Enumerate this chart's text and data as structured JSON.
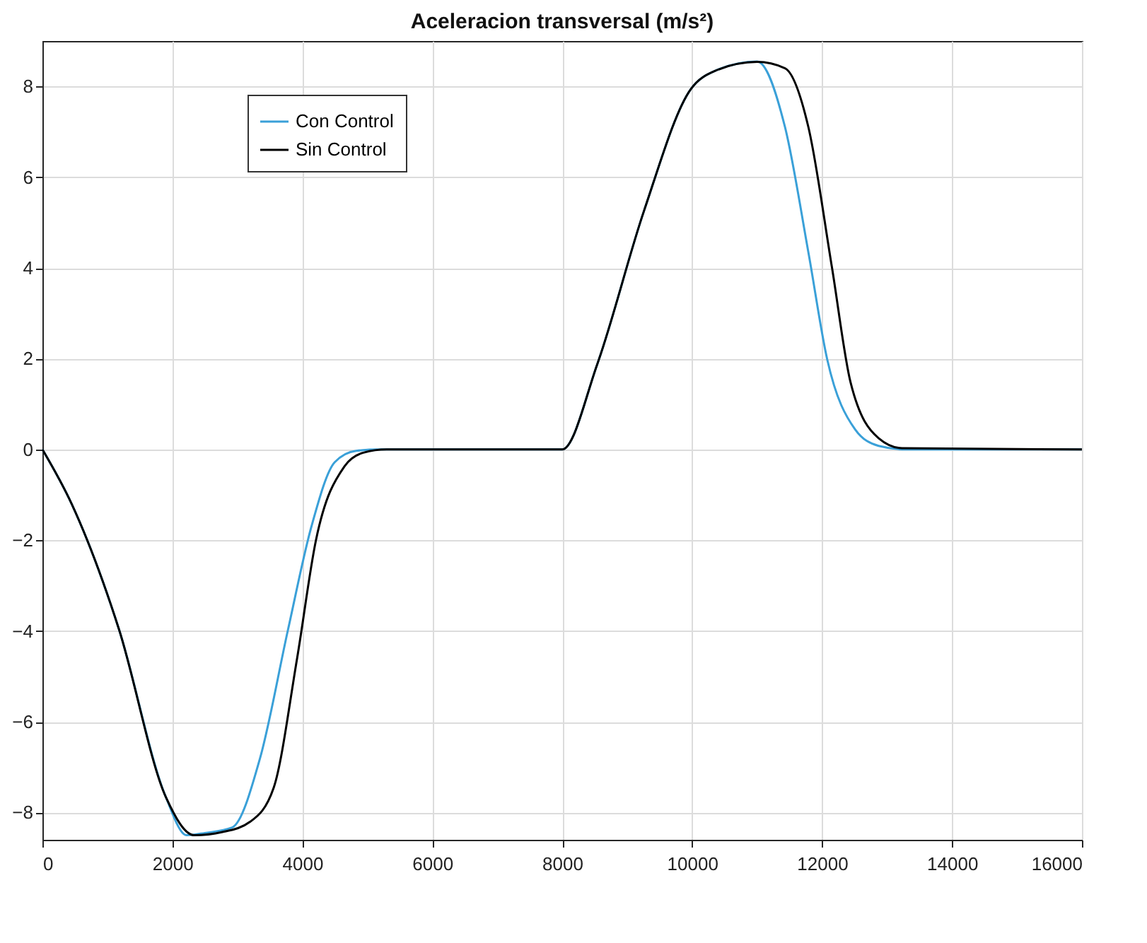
{
  "chart_data": {
    "type": "line",
    "title": "Aceleracion transversal (m/s²)",
    "xlim": [
      0,
      16000
    ],
    "xticks": [
      0,
      2000,
      4000,
      6000,
      8000,
      10000,
      12000,
      14000,
      16000
    ],
    "ylim": [
      -8.6,
      9
    ],
    "yticks": [
      -8,
      -6,
      -4,
      -2,
      0,
      2,
      4,
      6,
      8
    ],
    "grid": true,
    "legend": "top left",
    "line_style": "solid",
    "marker": "none",
    "series": [
      {
        "name": "Con Control",
        "color": "#3aa0d8",
        "x": [
          0,
          450,
          1180,
          1900,
          2220,
          2500,
          2920,
          3350,
          3780,
          4140,
          4500,
          4830,
          5200,
          8000,
          8540,
          9260,
          9980,
          10350,
          11000,
          11430,
          11790,
          12080,
          12510,
          12870,
          13300,
          16000
        ],
        "values": [
          0,
          -1.2,
          -3.97,
          -7.66,
          -8.5,
          -8.45,
          -8.33,
          -6.8,
          -3.97,
          -1.7,
          -0.28,
          -0.03,
          0,
          0,
          1.88,
          5.26,
          7.94,
          8.34,
          8.55,
          7.1,
          4.34,
          1.98,
          0.44,
          0.08,
          0,
          0
        ]
      },
      {
        "name": "Sin Control",
        "color": "#000000",
        "x": [
          0,
          450,
          1180,
          1900,
          2340,
          2770,
          3200,
          3560,
          3920,
          4210,
          4650,
          4940,
          5300,
          8000,
          8540,
          9260,
          9980,
          10350,
          11000,
          11430,
          11790,
          12150,
          12440,
          12870,
          13230,
          16000
        ],
        "values": [
          0,
          -1.2,
          -3.97,
          -7.66,
          -8.5,
          -8.43,
          -8.2,
          -7.45,
          -4.6,
          -2.0,
          -0.37,
          -0.07,
          0,
          0,
          1.88,
          5.26,
          7.94,
          8.34,
          8.54,
          8.4,
          7.1,
          4.03,
          1.47,
          0.25,
          0.03,
          0
        ]
      }
    ]
  }
}
